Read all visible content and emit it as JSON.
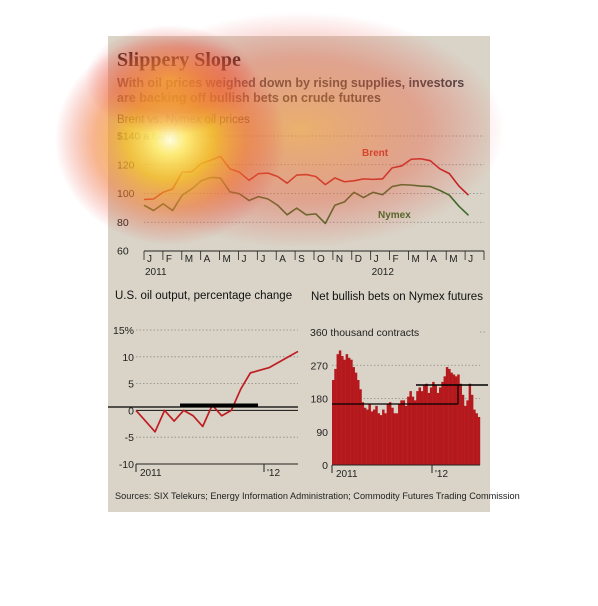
{
  "title": "Slippery Slope",
  "subtitle": "With oil prices weighed down by rising supplies, investors are backing off bullish bets on crude futures",
  "source": "Sources: SIX Telekurs; Energy Information Administration; Commodity Futures Trading Commission",
  "colors": {
    "panel": "#d9d4c7",
    "brent": "#c01c22",
    "nymex": "#3d6b2a",
    "bars": "#b5191d",
    "axis": "#222222",
    "grid": "#8a8a86"
  },
  "overlay": {
    "type": "heatmap",
    "hotspots": [
      "upper-left of top chart"
    ]
  },
  "chart_data": [
    {
      "type": "line",
      "title": "Brent vs. Nymex oil prices",
      "xlabel": "",
      "ylabel": "",
      "ylim": [
        60,
        140
      ],
      "y_ticks": [
        "$140 a barrel",
        "120",
        "100",
        "80",
        "60"
      ],
      "x_ticks": [
        "J",
        "F",
        "M",
        "A",
        "M",
        "J",
        "J",
        "A",
        "S",
        "O",
        "N",
        "D",
        "J",
        "F",
        "M",
        "A",
        "M",
        "J"
      ],
      "x_year_labels": [
        "2011",
        "2012"
      ],
      "grid": "horizontal dotted",
      "series": [
        {
          "name": "Brent",
          "color": "#c01c22",
          "x": [
            0,
            0.5,
            1,
            1.5,
            2,
            2.5,
            3,
            3.5,
            4,
            4.5,
            5,
            5.5,
            6,
            6.5,
            7,
            7.5,
            8,
            8.5,
            9,
            9.5,
            10,
            10.5,
            11,
            11.5,
            12,
            12.5,
            13,
            13.5,
            14,
            14.5,
            15,
            15.5,
            16,
            16.5,
            17
          ],
          "values": [
            95,
            97,
            100,
            104,
            114,
            116,
            120,
            124,
            125,
            118,
            114,
            110,
            113,
            115,
            111,
            108,
            112,
            114,
            111,
            107,
            110,
            109,
            108,
            111,
            109,
            111,
            117,
            120,
            123,
            125,
            122,
            118,
            113,
            106,
            98
          ]
        },
        {
          "name": "Nymex",
          "color": "#3d6b2a",
          "x": [
            0,
            0.5,
            1,
            1.5,
            2,
            2.5,
            3,
            3.5,
            4,
            4.5,
            5,
            5.5,
            6,
            6.5,
            7,
            7.5,
            8,
            8.5,
            9,
            9.5,
            10,
            10.5,
            11,
            11.5,
            12,
            12.5,
            13,
            13.5,
            14,
            14.5,
            15,
            15.5,
            16,
            16.5,
            17
          ],
          "values": [
            91,
            89,
            92,
            89,
            98,
            104,
            108,
            112,
            110,
            102,
            99,
            96,
            97,
            97,
            91,
            86,
            89,
            86,
            85,
            80,
            91,
            95,
            100,
            98,
            100,
            100,
            104,
            107,
            105,
            106,
            104,
            103,
            98,
            92,
            84
          ]
        }
      ]
    },
    {
      "type": "line",
      "title": "U.S. oil output, percentage change",
      "ylim": [
        -10,
        15
      ],
      "y_ticks": [
        "15%",
        "10",
        "5",
        "0",
        "-5",
        "-10"
      ],
      "x_labels": [
        "2011",
        "'12"
      ],
      "series": [
        {
          "name": "",
          "color": "#c01c22",
          "values": [
            0,
            -2,
            -4,
            0,
            -2,
            0,
            -1,
            -3,
            1,
            -1,
            0,
            4,
            7,
            7.5,
            8,
            9,
            10,
            11
          ]
        }
      ]
    },
    {
      "type": "bar",
      "title": "Net bullish bets on Nymex futures",
      "ylim": [
        0,
        360
      ],
      "y_ticks": [
        "360 thousand contracts",
        "270",
        "180",
        "90",
        "0"
      ],
      "x_labels": [
        "2011",
        "'12"
      ],
      "values": [
        230,
        260,
        300,
        310,
        295,
        285,
        300,
        290,
        285,
        265,
        250,
        230,
        205,
        170,
        155,
        150,
        165,
        145,
        150,
        160,
        140,
        135,
        150,
        140,
        165,
        170,
        155,
        140,
        140,
        165,
        175,
        175,
        160,
        185,
        200,
        185,
        175,
        200,
        210,
        200,
        215,
        220,
        195,
        210,
        225,
        215,
        195,
        210,
        225,
        240,
        265,
        260,
        250,
        245,
        240,
        245,
        220,
        190,
        160,
        175,
        220,
        190,
        150,
        140,
        130
      ]
    }
  ]
}
